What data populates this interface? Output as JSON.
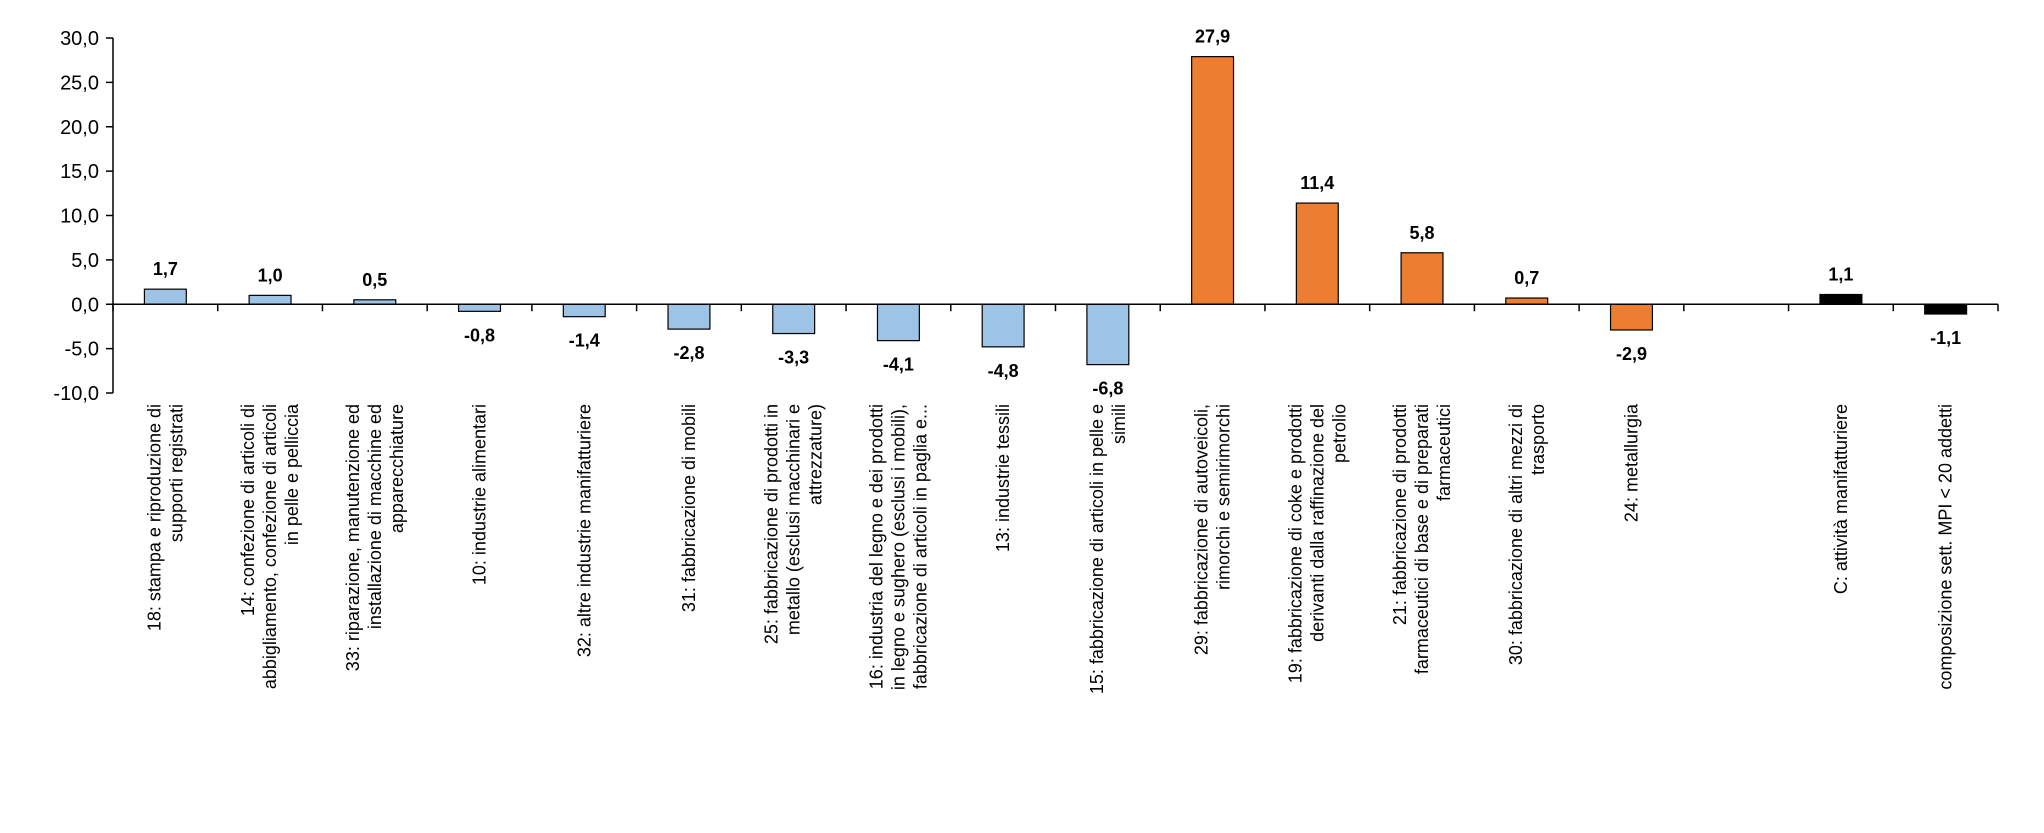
{
  "chart_data": {
    "type": "bar",
    "title": "",
    "xlabel": "",
    "ylabel": "",
    "ylim": [
      -10,
      30
    ],
    "yticks": [
      "30,0",
      "25,0",
      "20,0",
      "15,0",
      "10,0",
      "5,0",
      "0,0",
      "-5,0",
      "-10,0"
    ],
    "ytick_values": [
      30,
      25,
      20,
      15,
      10,
      5,
      0,
      -5,
      -10
    ],
    "grid": false,
    "categories": [
      [
        "18: stampa e riproduzione di",
        "supporti registrati"
      ],
      [
        "14: confezione di articoli di",
        "abbigliamento, confezione di articoli",
        "in pelle e pelliccia"
      ],
      [
        "33: riparazione, manutenzione ed",
        "installazione di macchine ed",
        "apparecchiature"
      ],
      [
        "10: industrie alimentari"
      ],
      [
        "32: altre industrie manifatturiere"
      ],
      [
        "31: fabbricazione di mobili"
      ],
      [
        "25: fabbricazione di prodotti in",
        "metallo (esclusi macchinari e",
        "attrezzature)"
      ],
      [
        "16: industria del legno e dei prodotti",
        "in legno e sughero (esclusi i mobili),",
        "fabbricazione di articoli in paglia e..."
      ],
      [
        "13: industrie tessili"
      ],
      [
        "15: fabbricazione di articoli in pelle e",
        "simili"
      ],
      [
        "29: fabbricazione di autoveicoli,",
        "rimorchi e semirimorchi"
      ],
      [
        "19: fabbricazione di coke e prodotti",
        "derivanti dalla raffinazione del",
        "petrolio"
      ],
      [
        "21: fabbricazione di prodotti",
        "farmaceutici di base e di preparati",
        "farmaceutici"
      ],
      [
        "30: fabbricazione di altri mezzi di",
        "trasporto"
      ],
      [
        "24: metallurgia"
      ],
      [],
      [
        "C: attività manifatturiere"
      ],
      [
        "composizione sett.  MPI < 20 addetti"
      ]
    ],
    "values": [
      1.7,
      1.0,
      0.5,
      -0.8,
      -1.4,
      -2.8,
      -3.3,
      -4.1,
      -4.8,
      -6.8,
      27.9,
      11.4,
      5.8,
      0.7,
      -2.9,
      null,
      1.1,
      -1.1
    ],
    "value_labels": [
      "1,7",
      "1,0",
      "0,5",
      "-0,8",
      "-1,4",
      "-2,8",
      "-3,3",
      "-4,1",
      "-4,8",
      "-6,8",
      "27,9",
      "11,4",
      "5,8",
      "0,7",
      "-2,9",
      "",
      "1,1",
      "-1,1"
    ],
    "colors": [
      "#9DC3E6",
      "#9DC3E6",
      "#9DC3E6",
      "#9DC3E6",
      "#9DC3E6",
      "#9DC3E6",
      "#9DC3E6",
      "#9DC3E6",
      "#9DC3E6",
      "#9DC3E6",
      "#ED7D31",
      "#ED7D31",
      "#ED7D31",
      "#ED7D31",
      "#ED7D31",
      "",
      "#000000",
      "#000000"
    ],
    "edge_color": "#000000"
  }
}
